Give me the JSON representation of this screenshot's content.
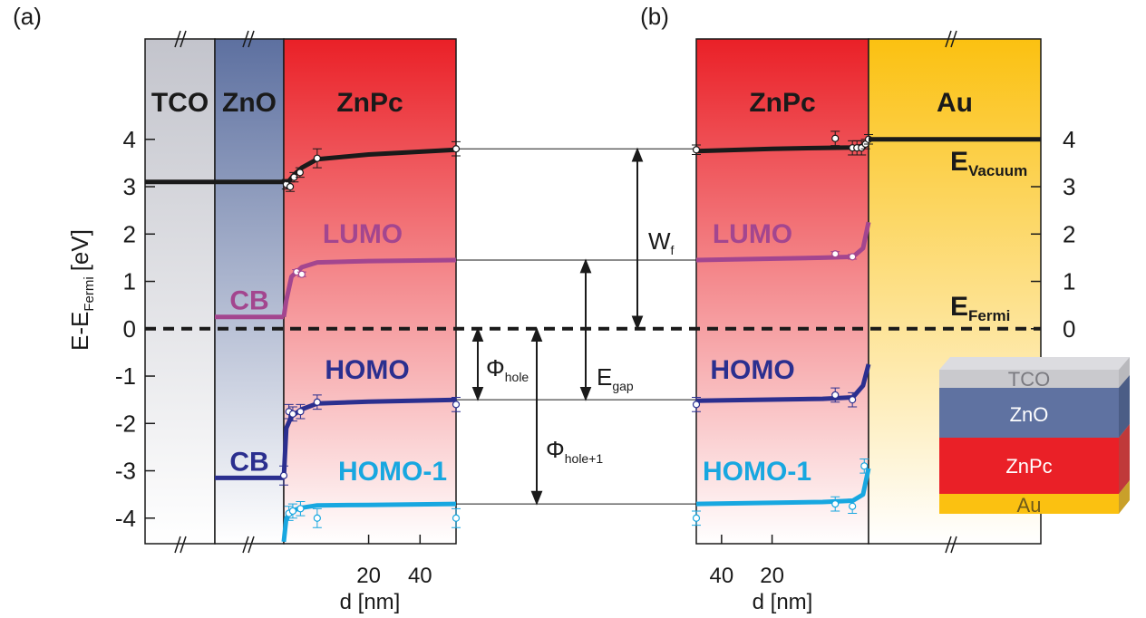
{
  "chart_data": {
    "type": "energy-diagram",
    "ylabel": {
      "main": "E-E",
      "sub": "Fermi",
      "unit": "[eV]"
    },
    "ylim": [
      -4.54,
      6.12
    ],
    "yticks": [
      -4,
      -3,
      -2,
      -1,
      0,
      1,
      2,
      3,
      4
    ],
    "y2ticks": [
      0,
      1,
      2,
      3,
      4
    ],
    "fermi_level": 0,
    "fermi_label": {
      "main": "E",
      "sub": "Fermi"
    },
    "vacuum_label": {
      "main": "E",
      "sub": "Vacuum"
    },
    "connectors": [
      3.8,
      1.45,
      -1.5,
      -3.7
    ],
    "annotations": [
      {
        "label": {
          "main": "W",
          "sub": "f"
        },
        "from": 0,
        "to": 3.8
      },
      {
        "label": {
          "main": "E",
          "sub": "gap"
        },
        "from": -1.5,
        "to": 1.45
      },
      {
        "label": {
          "main": "Φ",
          "sub": "hole"
        },
        "from": 0,
        "to": -1.5
      },
      {
        "label": {
          "main": "Φ",
          "sub": "hole+1"
        },
        "from": 0,
        "to": -3.7
      }
    ],
    "panels": [
      {
        "label": "(a)",
        "xlabel": "d [nm]",
        "xlim": [
          -13,
          54
        ],
        "xticks": [
          20,
          40
        ],
        "regions": [
          {
            "name": "TCO",
            "color": "#c3c4cc",
            "levels": [
              {
                "value": 3.1,
                "color": "#1a1a1a"
              }
            ]
          },
          {
            "name": "ZnO",
            "color": "#5d70a0",
            "levels": [
              {
                "value": 3.1,
                "color": "#1a1a1a"
              },
              {
                "value": 0.25,
                "color": "#a3468f",
                "label": "CB"
              },
              {
                "value": -3.15,
                "color": "#2b2f8f",
                "label": "CB"
              }
            ]
          },
          {
            "name": "ZnPc",
            "color": "#ea2027",
            "series": [
              {
                "color": "#1a1a1a",
                "x": [
                  -13,
                  -11,
                  -9,
                  -6,
                  0,
                  20,
                  54
                ],
                "values": [
                  3.1,
                  3.12,
                  3.25,
                  3.4,
                  3.58,
                  3.68,
                  3.78
                ],
                "points": {
                  "x": [
                    -12,
                    -10.5,
                    -9,
                    -6.7,
                    0,
                    54
                  ],
                  "values": [
                    3.05,
                    3.0,
                    3.2,
                    3.3,
                    3.6,
                    3.8
                  ],
                  "errors": [
                    0.1,
                    0.1,
                    0.1,
                    0.1,
                    0.2,
                    0.15
                  ]
                }
              },
              {
                "name": "LUMO",
                "color": "#a3468f",
                "x": [
                  -13,
                  -12,
                  -10,
                  -6,
                  0,
                  20,
                  54
                ],
                "values": [
                  0.25,
                  0.6,
                  1.1,
                  1.3,
                  1.4,
                  1.43,
                  1.45
                ],
                "points": {
                  "x": [
                    -8,
                    -6
                  ],
                  "values": [
                    1.2,
                    1.15
                  ],
                  "errors": [
                    0.05,
                    0.05
                  ]
                }
              },
              {
                "name": "HOMO",
                "color": "#2b2f8f",
                "x": [
                  -13,
                  -12,
                  -10,
                  -6,
                  0,
                  20,
                  54
                ],
                "values": [
                  -3.15,
                  -2.1,
                  -1.85,
                  -1.7,
                  -1.58,
                  -1.54,
                  -1.5
                ],
                "points": {
                  "x": [
                    -13,
                    -11,
                    -9.5,
                    -6.5,
                    0,
                    54
                  ],
                  "values": [
                    -3.1,
                    -1.75,
                    -1.8,
                    -1.75,
                    -1.55,
                    -1.6
                  ],
                  "errors": [
                    0.2,
                    0.15,
                    0.15,
                    0.15,
                    0.15,
                    0.15
                  ]
                }
              },
              {
                "name": "HOMO-1",
                "color": "#18a7e0",
                "x": [
                  -13,
                  -12,
                  -10,
                  -6,
                  0,
                  20,
                  54
                ],
                "values": [
                  -4.5,
                  -4.0,
                  -3.85,
                  -3.78,
                  -3.73,
                  -3.72,
                  -3.7
                ],
                "points": {
                  "x": [
                    -11,
                    -9.5,
                    -6.5,
                    0,
                    54
                  ],
                  "values": [
                    -3.9,
                    -3.85,
                    -3.8,
                    -4.0,
                    -4.0
                  ],
                  "errors": [
                    0.15,
                    0.15,
                    0.15,
                    0.2,
                    0.2
                  ]
                }
              }
            ]
          }
        ]
      },
      {
        "label": "(b)",
        "xlabel": "d [nm]",
        "xlim": [
          50,
          -18.2
        ],
        "xticks": [
          40,
          20
        ],
        "regions": [
          {
            "name": "ZnPc",
            "color": "#ea2027",
            "series": [
              {
                "color": "#1a1a1a",
                "x": [
                  50,
                  20,
                  0,
                  -12,
                  -16,
                  -18.2
                ],
                "values": [
                  3.75,
                  3.8,
                  3.82,
                  3.83,
                  3.86,
                  4.0
                ],
                "points": {
                  "x": [
                    50,
                    -5,
                    -11.8,
                    -13.6,
                    -15.4,
                    -17,
                    -18.2
                  ],
                  "values": [
                    3.78,
                    4.02,
                    3.82,
                    3.82,
                    3.82,
                    3.9,
                    4.0
                  ],
                  "errors": [
                    0.1,
                    0.15,
                    0.15,
                    0.15,
                    0.15,
                    0.1,
                    0.1
                  ]
                }
              },
              {
                "name": "LUMO",
                "color": "#a3468f",
                "x": [
                  50,
                  0,
                  -12,
                  -16,
                  -18.2
                ],
                "values": [
                  1.45,
                  1.5,
                  1.52,
                  1.7,
                  2.25
                ],
                "points": {
                  "x": [
                    -5,
                    -11.8
                  ],
                  "values": [
                    1.58,
                    1.52
                  ],
                  "errors": [
                    0.05,
                    0.05
                  ]
                }
              },
              {
                "name": "HOMO",
                "color": "#2b2f8f",
                "x": [
                  50,
                  0,
                  -12,
                  -16,
                  -18.2
                ],
                "values": [
                  -1.52,
                  -1.48,
                  -1.45,
                  -1.2,
                  -0.75
                ],
                "points": {
                  "x": [
                    50,
                    -5,
                    -11.8
                  ],
                  "values": [
                    -1.6,
                    -1.4,
                    -1.5
                  ],
                  "errors": [
                    0.15,
                    0.15,
                    0.15
                  ]
                }
              },
              {
                "name": "HOMO-1",
                "color": "#18a7e0",
                "x": [
                  50,
                  0,
                  -12,
                  -16,
                  -18.2
                ],
                "values": [
                  -3.7,
                  -3.66,
                  -3.63,
                  -3.5,
                  -2.95
                ],
                "points": {
                  "x": [
                    50,
                    -5,
                    -11.8,
                    -16.5
                  ],
                  "values": [
                    -4.0,
                    -3.7,
                    -3.75,
                    -2.9
                  ],
                  "errors": [
                    0.15,
                    0.15,
                    0.15,
                    0.15
                  ]
                }
              }
            ]
          },
          {
            "name": "Au",
            "color": "#fbc111",
            "levels": [
              {
                "value": 4.0,
                "color": "#1a1a1a"
              }
            ]
          }
        ]
      }
    ]
  },
  "inset": {
    "layers": [
      "TCO",
      "ZnO",
      "ZnPc",
      "Au"
    ]
  }
}
